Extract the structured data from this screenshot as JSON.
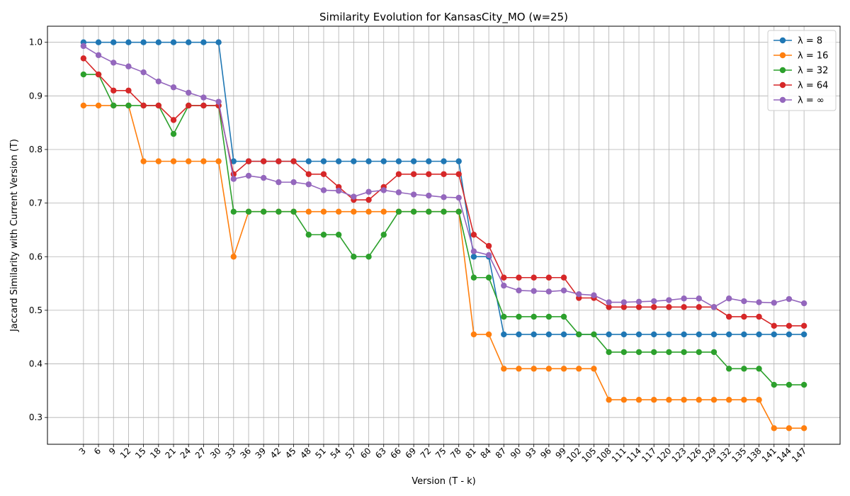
{
  "chart_data": {
    "type": "line",
    "title": "Similarity Evolution for KansasCity_MO (w=25)",
    "xlabel": "Version (T - k)",
    "ylabel": "Jaccard Similarity with Current Version (T)",
    "ylim": [
      0.25,
      1.03
    ],
    "yticks": [
      0.3,
      0.4,
      0.5,
      0.6,
      0.7,
      0.8,
      0.9,
      1.0
    ],
    "grid": true,
    "legend_position": "top-right",
    "x": [
      3,
      6,
      9,
      12,
      15,
      18,
      21,
      24,
      27,
      30,
      33,
      36,
      39,
      42,
      45,
      48,
      51,
      54,
      57,
      60,
      63,
      66,
      69,
      72,
      75,
      78,
      81,
      84,
      87,
      90,
      93,
      96,
      99,
      102,
      105,
      108,
      111,
      114,
      117,
      120,
      123,
      126,
      129,
      132,
      135,
      138,
      141,
      144,
      147
    ],
    "series": [
      {
        "name": "λ = 8",
        "color": "#1f77b4",
        "values": [
          1.0,
          1.0,
          1.0,
          1.0,
          1.0,
          1.0,
          1.0,
          1.0,
          1.0,
          1.0,
          0.778,
          0.778,
          0.778,
          0.778,
          0.778,
          0.778,
          0.778,
          0.778,
          0.778,
          0.778,
          0.778,
          0.778,
          0.778,
          0.778,
          0.778,
          0.778,
          0.6,
          0.6,
          0.455,
          0.455,
          0.455,
          0.455,
          0.455,
          0.455,
          0.455,
          0.455,
          0.455,
          0.455,
          0.455,
          0.455,
          0.455,
          0.455,
          0.455,
          0.455,
          0.455,
          0.455,
          0.455,
          0.455,
          0.455
        ]
      },
      {
        "name": "λ = 16",
        "color": "#ff7f0e",
        "values": [
          0.882,
          0.882,
          0.882,
          0.882,
          0.778,
          0.778,
          0.778,
          0.778,
          0.778,
          0.778,
          0.6,
          0.684,
          0.684,
          0.684,
          0.684,
          0.684,
          0.684,
          0.684,
          0.684,
          0.684,
          0.684,
          0.684,
          0.684,
          0.684,
          0.684,
          0.684,
          0.455,
          0.455,
          0.391,
          0.391,
          0.391,
          0.391,
          0.391,
          0.391,
          0.391,
          0.333,
          0.333,
          0.333,
          0.333,
          0.333,
          0.333,
          0.333,
          0.333,
          0.333,
          0.333,
          0.333,
          0.28,
          0.28,
          0.28
        ]
      },
      {
        "name": "λ = 32",
        "color": "#2ca02c",
        "values": [
          0.94,
          0.94,
          0.882,
          0.882,
          0.882,
          0.882,
          0.829,
          0.882,
          0.882,
          0.882,
          0.684,
          0.684,
          0.684,
          0.684,
          0.684,
          0.641,
          0.641,
          0.641,
          0.6,
          0.6,
          0.641,
          0.684,
          0.684,
          0.684,
          0.684,
          0.684,
          0.561,
          0.561,
          0.488,
          0.488,
          0.488,
          0.488,
          0.488,
          0.455,
          0.455,
          0.422,
          0.422,
          0.422,
          0.422,
          0.422,
          0.422,
          0.422,
          0.422,
          0.391,
          0.391,
          0.391,
          0.361,
          0.361,
          0.361
        ]
      },
      {
        "name": "λ = 64",
        "color": "#d62728",
        "values": [
          0.97,
          0.94,
          0.91,
          0.91,
          0.882,
          0.882,
          0.855,
          0.882,
          0.882,
          0.882,
          0.754,
          0.778,
          0.778,
          0.778,
          0.778,
          0.754,
          0.754,
          0.73,
          0.706,
          0.706,
          0.73,
          0.754,
          0.754,
          0.754,
          0.754,
          0.754,
          0.641,
          0.62,
          0.561,
          0.561,
          0.561,
          0.561,
          0.561,
          0.523,
          0.523,
          0.506,
          0.506,
          0.506,
          0.506,
          0.506,
          0.506,
          0.506,
          0.506,
          0.488,
          0.488,
          0.488,
          0.471,
          0.471,
          0.471
        ]
      },
      {
        "name": "λ = ∞",
        "color": "#9467bd",
        "values": [
          0.993,
          0.976,
          0.962,
          0.955,
          0.944,
          0.927,
          0.916,
          0.906,
          0.897,
          0.889,
          0.745,
          0.751,
          0.747,
          0.739,
          0.739,
          0.735,
          0.724,
          0.723,
          0.712,
          0.721,
          0.724,
          0.72,
          0.716,
          0.714,
          0.711,
          0.71,
          0.61,
          0.603,
          0.546,
          0.537,
          0.536,
          0.535,
          0.537,
          0.53,
          0.528,
          0.515,
          0.515,
          0.516,
          0.517,
          0.519,
          0.522,
          0.522,
          0.506,
          0.522,
          0.517,
          0.515,
          0.514,
          0.521,
          0.513
        ]
      }
    ]
  }
}
